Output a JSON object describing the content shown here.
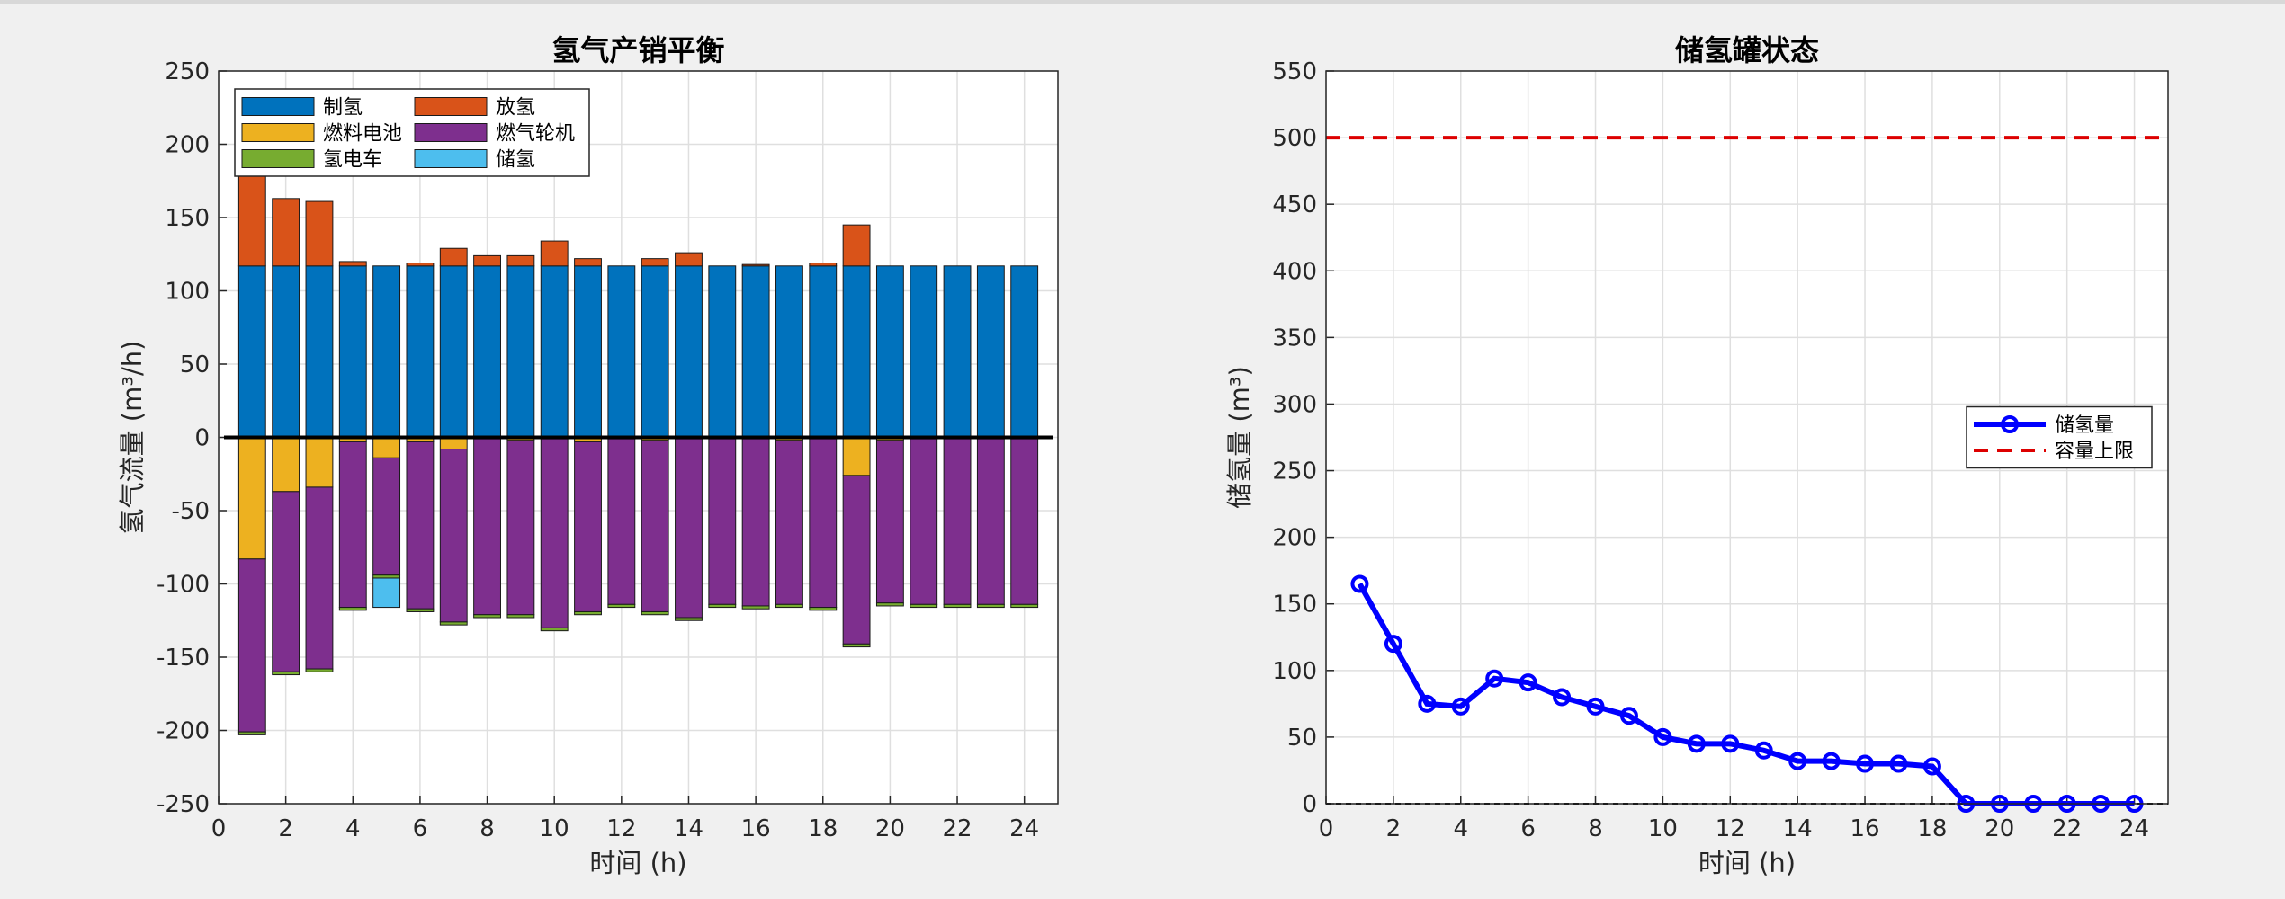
{
  "chart_data": [
    {
      "type": "bar",
      "stacked": true,
      "title": "氢气产销平衡",
      "xlabel": "时间 (h)",
      "ylabel": "氢气流量 (m³/h)",
      "x": [
        1,
        2,
        3,
        4,
        5,
        6,
        7,
        8,
        9,
        10,
        11,
        12,
        13,
        14,
        15,
        16,
        17,
        18,
        19,
        20,
        21,
        22,
        23,
        24
      ],
      "series": [
        {
          "name": "制氢",
          "color": "#0072bd",
          "values": [
            117,
            117,
            117,
            117,
            117,
            117,
            117,
            117,
            117,
            117,
            117,
            117,
            117,
            117,
            117,
            117,
            117,
            117,
            117,
            117,
            117,
            117,
            117,
            117
          ]
        },
        {
          "name": "放氢",
          "color": "#d95319",
          "values": [
            69,
            46,
            44,
            3,
            0,
            2,
            12,
            7,
            7,
            17,
            5,
            0,
            5,
            9,
            0,
            1,
            0,
            2,
            28,
            0,
            0,
            0,
            0,
            0
          ]
        },
        {
          "name": "燃料电池",
          "color": "#edb120",
          "values": [
            -83,
            -37,
            -34,
            -3,
            -14,
            -3,
            -8,
            -1,
            -2,
            -1,
            -3,
            -1,
            -2,
            -1,
            -1,
            -1,
            -2,
            -1,
            -26,
            -2,
            -1,
            -1,
            -1,
            -1
          ]
        },
        {
          "name": "燃气轮机",
          "color": "#7e2f8e",
          "values": [
            -118,
            -123,
            -124,
            -113,
            -80,
            -114,
            -118,
            -120,
            -119,
            -129,
            -116,
            -113,
            -117,
            -122,
            -113,
            -114,
            -112,
            -115,
            -115,
            -111,
            -113,
            -113,
            -113,
            -113
          ]
        },
        {
          "name": "氢电车",
          "color": "#77ac30",
          "values": [
            -2,
            -2,
            -2,
            -2,
            -2,
            -2,
            -2,
            -2,
            -2,
            -2,
            -2,
            -2,
            -2,
            -2,
            -2,
            -2,
            -2,
            -2,
            -2,
            -2,
            -2,
            -2,
            -2,
            -2
          ]
        },
        {
          "name": "储氢",
          "color": "#4dbeee",
          "values": [
            0,
            0,
            0,
            0,
            -20,
            0,
            0,
            0,
            0,
            0,
            0,
            0,
            0,
            0,
            0,
            0,
            0,
            0,
            0,
            0,
            0,
            0,
            0,
            0
          ]
        }
      ],
      "xlim": [
        0,
        25
      ],
      "xticks": [
        0,
        2,
        4,
        6,
        8,
        10,
        12,
        14,
        16,
        18,
        20,
        22,
        24
      ],
      "ylim": [
        -250,
        250
      ],
      "yticks": [
        -250,
        -200,
        -150,
        -100,
        -50,
        0,
        50,
        100,
        150,
        200,
        250
      ],
      "grid": true,
      "legend_location": "northwest",
      "legend_columns": 2
    },
    {
      "type": "line",
      "title": "储氢罐状态",
      "xlabel": "时间 (h)",
      "ylabel": "储氢量 (m³)",
      "x": [
        1,
        2,
        3,
        4,
        5,
        6,
        7,
        8,
        9,
        10,
        11,
        12,
        13,
        14,
        15,
        16,
        17,
        18,
        19,
        20,
        21,
        22,
        23,
        24
      ],
      "series": [
        {
          "name": "储氢量",
          "color": "#0000ff",
          "marker": "o",
          "values": [
            165,
            120,
            75,
            73,
            94,
            91,
            80,
            73,
            66,
            50,
            45,
            45,
            40,
            32,
            32,
            30,
            30,
            28,
            0,
            0,
            0,
            0,
            0,
            0
          ]
        }
      ],
      "reference_lines": [
        {
          "name": "容量上限",
          "value": 500,
          "color": "#dd0000",
          "style": "dashed"
        }
      ],
      "xlim": [
        0,
        25
      ],
      "xticks": [
        0,
        2,
        4,
        6,
        8,
        10,
        12,
        14,
        16,
        18,
        20,
        22,
        24
      ],
      "ylim": [
        0,
        550
      ],
      "yticks": [
        0,
        50,
        100,
        150,
        200,
        250,
        300,
        350,
        400,
        450,
        500,
        550
      ],
      "grid": true,
      "legend_location": "east",
      "legend_columns": 1
    }
  ]
}
